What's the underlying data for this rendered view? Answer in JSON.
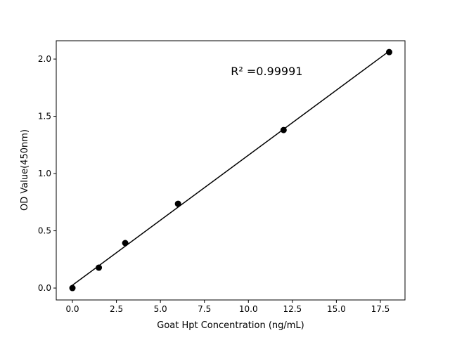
{
  "chart_data": {
    "type": "scatter",
    "title": "",
    "xlabel": "Goat Hpt Concentration (ng/mL)",
    "ylabel": "OD Value(450nm)",
    "xlim": [
      -0.92,
      18.9
    ],
    "ylim": [
      -0.104,
      2.16
    ],
    "xticks": [
      0.0,
      2.5,
      5.0,
      7.5,
      10.0,
      12.5,
      15.0,
      17.5
    ],
    "xtick_labels": [
      "0.0",
      "2.5",
      "5.0",
      "7.5",
      "10.0",
      "12.5",
      "15.0",
      "17.5"
    ],
    "yticks": [
      0.0,
      0.5,
      1.0,
      1.5,
      2.0
    ],
    "ytick_labels": [
      "0.0",
      "0.5",
      "1.0",
      "1.5",
      "2.0"
    ],
    "grid": false,
    "series": [
      {
        "x": [
          0,
          1.5,
          3,
          6,
          12,
          18
        ],
        "y": [
          0.0,
          0.178,
          0.393,
          0.736,
          1.38,
          2.061
        ],
        "color": "#000000",
        "marker": "circle",
        "fit_line": "linear"
      }
    ],
    "annotation": "R² =0.99991",
    "annotation_position": [
      9.0,
      1.86
    ]
  }
}
